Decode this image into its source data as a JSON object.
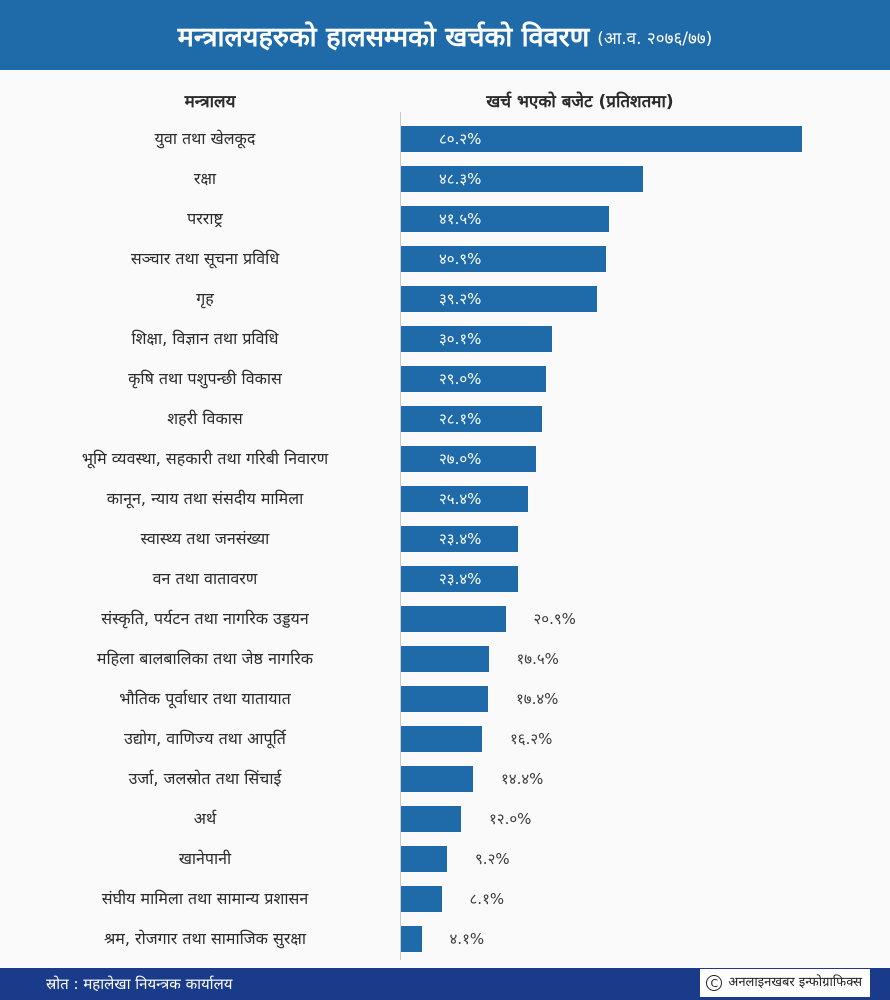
{
  "title": "मन्त्रालयहरुको हालसम्मको खर्चको विवरण",
  "subtitle": "(आ.व. २०७६/७७)",
  "header_left": "मन्त्रालय",
  "header_right": "खर्च भएको बजेट (प्रतिशतमा)",
  "footer": {
    "source": "स्रोत : महालेखा नियन्त्रक कार्यालय",
    "credit": "अनलाइनखबर इन्फोग्राफिक्स",
    "copyright_symbol": "C"
  },
  "colors": {
    "bar": "#1f6aa8",
    "title_bg": "#1f6aa8",
    "footer_bg": "#1a3a8a"
  },
  "chart_data": {
    "type": "bar",
    "orientation": "horizontal",
    "title": "मन्त्रालयहरुको हालसम्मको खर्चको विवरण",
    "xlabel": "खर्च भएको बजेट (प्रतिशतमा)",
    "ylabel": "मन्त्रालय",
    "xlim": [
      0,
      100
    ],
    "categories": [
      "युवा तथा खेलकूद",
      "रक्षा",
      "परराष्ट्र",
      "सञ्चार तथा सूचना प्रविधि",
      "गृह",
      "शिक्षा, विज्ञान तथा प्रविधि",
      "कृषि तथा पशुपन्छी विकास",
      "शहरी विकास",
      "भूमि व्यवस्था, सहकारी तथा गरिबी निवारण",
      "कानून, न्याय तथा संसदीय मामिला",
      "स्वास्थ्य तथा जनसंख्या",
      "वन तथा वातावरण",
      "संस्कृति, पर्यटन तथा नागरिक उड्डयन",
      "महिला बालबालिका तथा जेष्ठ नागरिक",
      "भौतिक पूर्वाधार तथा यातायात",
      "उद्योग, वाणिज्य तथा आपूर्ति",
      "उर्जा, जलस्रोत तथा सिंचाई",
      "अर्थ",
      "खानेपानी",
      "संघीय मामिला तथा सामान्य प्रशासन",
      "श्रम, रोजगार तथा सामाजिक सुरक्षा"
    ],
    "values": [
      80.2,
      48.3,
      41.5,
      40.9,
      39.2,
      30.1,
      29.0,
      28.1,
      27.0,
      25.4,
      23.4,
      23.4,
      20.9,
      17.5,
      17.4,
      16.2,
      14.4,
      12.0,
      9.2,
      8.1,
      4.1
    ],
    "value_labels": [
      "८०.२%",
      "४८.३%",
      "४१.५%",
      "४०.९%",
      "३९.२%",
      "३०.१%",
      "२९.०%",
      "२८.१%",
      "२७.०%",
      "२५.४%",
      "२३.४%",
      "२३.४%",
      "२०.९%",
      "१७.५%",
      "१७.४%",
      "१६.२%",
      "१४.४%",
      "१२.०%",
      "९.२%",
      "८.१%",
      "४.१%"
    ]
  }
}
